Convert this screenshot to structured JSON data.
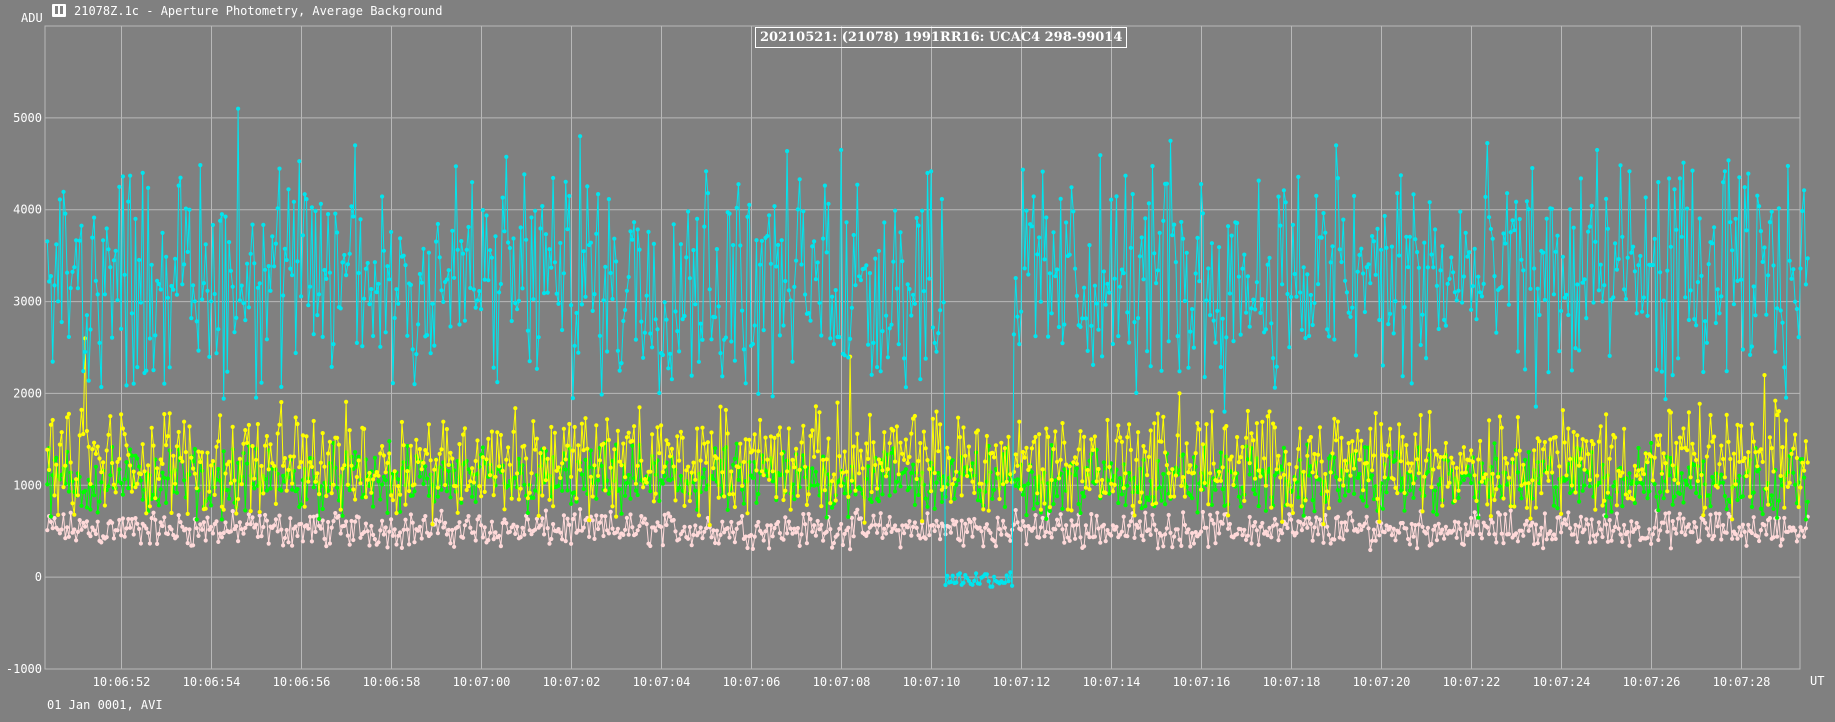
{
  "window": {
    "title": "21078Z.1c - Aperture Photometry, Average Background",
    "icon": "app-icon"
  },
  "footer": {
    "date_source": "01 Jan 0001, AVI"
  },
  "colors": {
    "background": "#808080",
    "grid": "#b8b8b8",
    "cyan": "#00e5ee",
    "yellow": "#ffff00",
    "green": "#00ff00",
    "pink": "#ffd9d9"
  },
  "chart_data": {
    "type": "line",
    "title": "20210521: (21078) 1991RR16: UCAC4 298-99014",
    "ylabel": "ADU",
    "xlabel": "UT",
    "ylim": [
      -1000,
      6000
    ],
    "yticks": [
      -1000,
      0,
      1000,
      2000,
      3000,
      4000,
      5000
    ],
    "xlim_seconds": [
      0,
      39.2
    ],
    "xticks": [
      "10:06:52",
      "10:06:54",
      "10:06:56",
      "10:06:58",
      "10:07:00",
      "10:07:02",
      "10:07:04",
      "10:07:06",
      "10:07:08",
      "10:07:10",
      "10:07:12",
      "10:07:14",
      "10:07:16",
      "10:07:18",
      "10:07:20",
      "10:07:22",
      "10:07:24",
      "10:07:26",
      "10:07:28"
    ],
    "grid": true,
    "legend": "none",
    "series": [
      {
        "color": "#00e5ee",
        "baseline": 3250,
        "amplitude": 1500,
        "event_dip": {
          "from": "10:07:10.3",
          "to": "10:07:11.8",
          "level": -20
        },
        "peak_samples": [
          [
            "10:06:52.3",
            3900
          ],
          [
            "10:06:53.5",
            4000
          ],
          [
            "10:06:54.6",
            5100
          ],
          [
            "10:06:57.2",
            4700
          ],
          [
            "10:06:59.8",
            4300
          ],
          [
            "10:07:02.2",
            4800
          ],
          [
            "10:07:04.8",
            3900
          ],
          [
            "10:07:08.0",
            4650
          ],
          [
            "10:07:09.9",
            4400
          ],
          [
            "10:07:15.3",
            4750
          ],
          [
            "10:07:19.0",
            4700
          ],
          [
            "10:07:24.8",
            4650
          ],
          [
            "10:07:27.6",
            4300
          ]
        ]
      },
      {
        "color": "#ffff00",
        "baseline": 1250,
        "amplitude": 700,
        "peak_samples": [
          [
            "10:06:51.2",
            2600
          ],
          [
            "10:07:08.2",
            2400
          ],
          [
            "10:07:15.5",
            2000
          ],
          [
            "10:07:28.5",
            2200
          ]
        ]
      },
      {
        "color": "#00ff00",
        "baseline": 1050,
        "amplitude": 450
      },
      {
        "color": "#ffd9d9",
        "baseline": 520,
        "amplitude": 230
      }
    ]
  }
}
